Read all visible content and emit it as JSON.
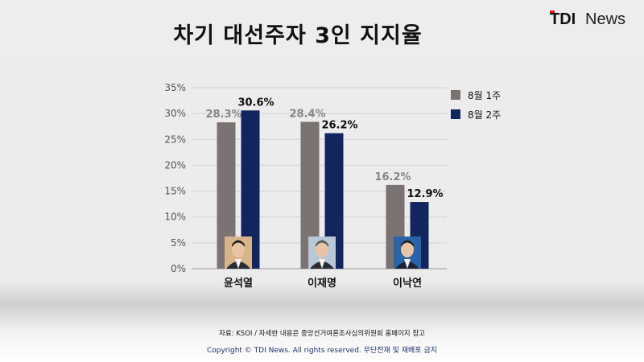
{
  "title": "차기 대선주자 3인 지지율",
  "brand": {
    "tdi": "TDI",
    "news": "News"
  },
  "footer": {
    "source": "자료: KSOI / 자세한 내용은 중앙선거여론조사심의위원회 홈페이지 참고",
    "copyright": "Copyright © TDI News. All rights reserved. 무단전재 및 재배포 금지"
  },
  "colors": {
    "series1": "#7a7372",
    "series2": "#12255e",
    "label1": "#8a8583",
    "label2": "#111111"
  },
  "chart_data": {
    "type": "bar",
    "title": "차기 대선주자 3인 지지율",
    "categories": [
      "윤석열",
      "이재명",
      "이낙연"
    ],
    "series": [
      {
        "name": "8월 1주",
        "values": [
          28.3,
          28.4,
          16.2
        ],
        "labels": [
          "28.3%",
          "28.4%",
          "16.2%"
        ]
      },
      {
        "name": "8월 2주",
        "values": [
          30.6,
          26.2,
          12.9
        ],
        "labels": [
          "30.6%",
          "26.2%",
          "12.9%"
        ]
      }
    ],
    "ylim": [
      0,
      35
    ],
    "yticks": [
      "0%",
      "5%",
      "10%",
      "15%",
      "20%",
      "25%",
      "30%",
      "35%"
    ],
    "xlabel": "",
    "ylabel": "",
    "grid": true,
    "legend": "right"
  },
  "photos": [
    {
      "icon": "person-photo-yoon"
    },
    {
      "icon": "person-photo-lee-jm"
    },
    {
      "icon": "person-photo-lee-ny"
    }
  ]
}
